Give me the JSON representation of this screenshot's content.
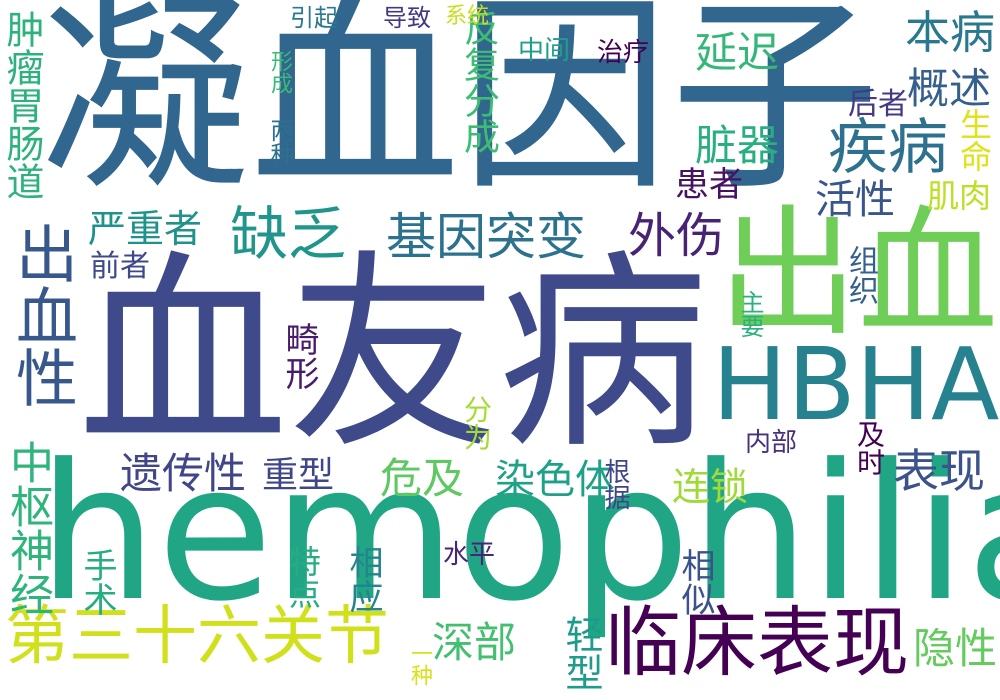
{
  "words": [
    {
      "text": "凝血因子",
      "color": "#31668e",
      "id": "w0"
    },
    {
      "text": "血友病",
      "color": "#3e4a89",
      "id": "w1"
    },
    {
      "text": "hemophilia",
      "color": "#21a685",
      "id": "w2"
    },
    {
      "text": "出血",
      "color": "#6ece58",
      "id": "w3"
    },
    {
      "text": "HBHA",
      "color": "#26828e",
      "id": "w4"
    },
    {
      "text": "临床表现",
      "color": "#440154",
      "id": "w5"
    },
    {
      "text": "疾病",
      "color": "#2d718e",
      "id": "w6"
    },
    {
      "text": "基因突变",
      "color": "#2c728e",
      "id": "w7"
    },
    {
      "text": "缺乏",
      "color": "#1f958b",
      "id": "w8"
    },
    {
      "text": "出血性",
      "color": "#38588c",
      "id": "w9"
    },
    {
      "text": "第三十六关节",
      "color": "#d0e11c",
      "id": "w10"
    },
    {
      "text": "遗传性",
      "color": "#404688",
      "id": "w11"
    },
    {
      "text": "外伤",
      "color": "#482374",
      "id": "w12"
    },
    {
      "text": "本病",
      "color": "#2a788e",
      "id": "w13"
    },
    {
      "text": "表现",
      "color": "#3b528b",
      "id": "w14"
    },
    {
      "text": "肿瘤胃肠道",
      "color": "#2db27d",
      "id": "w15"
    },
    {
      "text": "中枢神经",
      "color": "#2fb47c",
      "id": "w16"
    },
    {
      "text": "延迟",
      "color": "#35b779",
      "id": "w17"
    },
    {
      "text": "概述",
      "color": "#355f8d",
      "id": "w18"
    },
    {
      "text": "脏器",
      "color": "#28ae80",
      "id": "w19"
    },
    {
      "text": "反复分成",
      "color": "#3dbc74",
      "id": "w20"
    },
    {
      "text": "深部",
      "color": "#44bf70",
      "id": "w21"
    },
    {
      "text": "染色体",
      "color": "#1fa188",
      "id": "w22"
    },
    {
      "text": "危及",
      "color": "#5ec962",
      "id": "w23"
    },
    {
      "text": "重型",
      "color": "#3f4788",
      "id": "w24"
    },
    {
      "text": "严重者",
      "color": "#20928c",
      "id": "w25"
    },
    {
      "text": "活性",
      "color": "#39568c",
      "id": "w26"
    },
    {
      "text": "隐性",
      "color": "#65cb5e",
      "id": "w27"
    },
    {
      "text": "轻型",
      "color": "#1e9b8a",
      "id": "w28"
    },
    {
      "text": "连锁",
      "color": "#a0da39",
      "id": "w29"
    },
    {
      "text": "肌肉",
      "color": "#bddf26",
      "id": "w30"
    },
    {
      "text": "生命",
      "color": "#dde318",
      "id": "w31"
    },
    {
      "text": "患者",
      "color": "#471164",
      "id": "w32"
    },
    {
      "text": "后者",
      "color": "#443983",
      "id": "w33"
    },
    {
      "text": "中间",
      "color": "#1f9e89",
      "id": "w34"
    },
    {
      "text": "治疗",
      "color": "#440154",
      "id": "w35"
    },
    {
      "text": "手术",
      "color": "#26ad81",
      "id": "w36"
    },
    {
      "text": "相似",
      "color": "#3b528b",
      "id": "w37"
    },
    {
      "text": "相应",
      "color": "#25858e",
      "id": "w38"
    },
    {
      "text": "特点",
      "color": "#25ac82",
      "id": "w39"
    },
    {
      "text": "水平",
      "color": "#482677",
      "id": "w40"
    },
    {
      "text": "根据",
      "color": "#404588",
      "id": "w41"
    },
    {
      "text": "内部",
      "color": "#46307e",
      "id": "w42"
    },
    {
      "text": "及时",
      "color": "#440154",
      "id": "w43"
    },
    {
      "text": "分为",
      "color": "#a5db36",
      "id": "w44"
    },
    {
      "text": "畸形",
      "color": "#481a6c",
      "id": "w45"
    },
    {
      "text": "前者",
      "color": "#3e4989",
      "id": "w46"
    },
    {
      "text": "组织",
      "color": "#34608d",
      "id": "w47"
    },
    {
      "text": "主要",
      "color": "#2ab07f",
      "id": "w48"
    },
    {
      "text": "两种",
      "color": "#2d708e",
      "id": "w49"
    },
    {
      "text": "形成",
      "color": "#3aba76",
      "id": "w50"
    },
    {
      "text": "引起",
      "color": "#2a788e",
      "id": "w51"
    },
    {
      "text": "导致",
      "color": "#453882",
      "id": "w52"
    },
    {
      "text": "系统",
      "color": "#c8e020",
      "id": "w53"
    },
    {
      "text": "一种",
      "color": "#d8e219",
      "id": "w54"
    }
  ]
}
